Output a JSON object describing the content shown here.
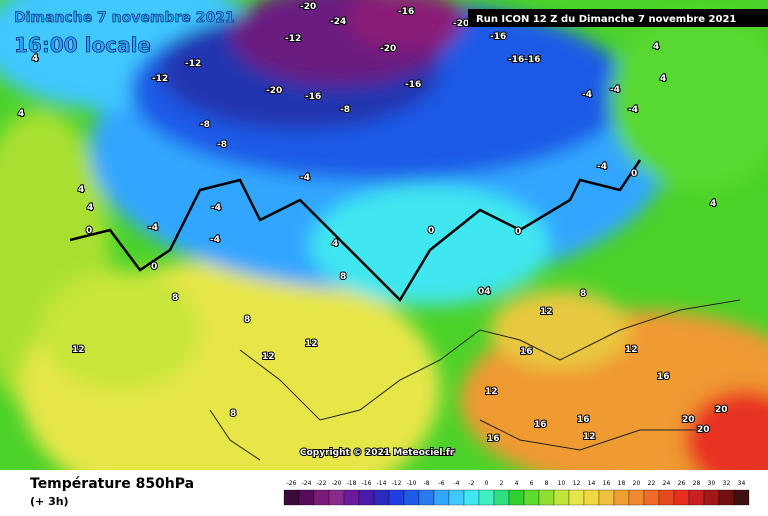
{
  "header": {
    "date_line": "Dimanche 7 novembre 2021",
    "time_line": "16:00 locale",
    "run": "Run ICON 12 Z du Dimanche 7 novembre 2021"
  },
  "map_labels": [
    "-20",
    "-24",
    "-16",
    "-20",
    "-16",
    "-12",
    "-12",
    "-12",
    "-20",
    "-16",
    "-20",
    "-16",
    "-16-16",
    "-8",
    "-8",
    "-8",
    "-4",
    "-4",
    "-4",
    "-4",
    "-4",
    "-4",
    "-4",
    "-4",
    "0",
    "0",
    "0",
    "0",
    "0",
    "4",
    "4",
    "4",
    "4",
    "4",
    "4",
    "4",
    "4",
    "04",
    "8",
    "8",
    "8",
    "8",
    "8",
    "12",
    "12",
    "12",
    "12",
    "12",
    "12",
    "12",
    "16",
    "16",
    "16",
    "16",
    "16",
    "20",
    "20",
    "20"
  ],
  "footer": {
    "title": "Température 850hPa",
    "step": "(+ 3h)",
    "copyright": "Copyright © 2021 Meteociel.fr"
  },
  "color_scale": [
    -26,
    -24,
    -22,
    -20,
    -18,
    -16,
    -14,
    -12,
    -10,
    -8,
    -6,
    -4,
    -2,
    0,
    2,
    4,
    6,
    8,
    10,
    12,
    14,
    16,
    18,
    20,
    22,
    24,
    26,
    28,
    30,
    32,
    34
  ]
}
